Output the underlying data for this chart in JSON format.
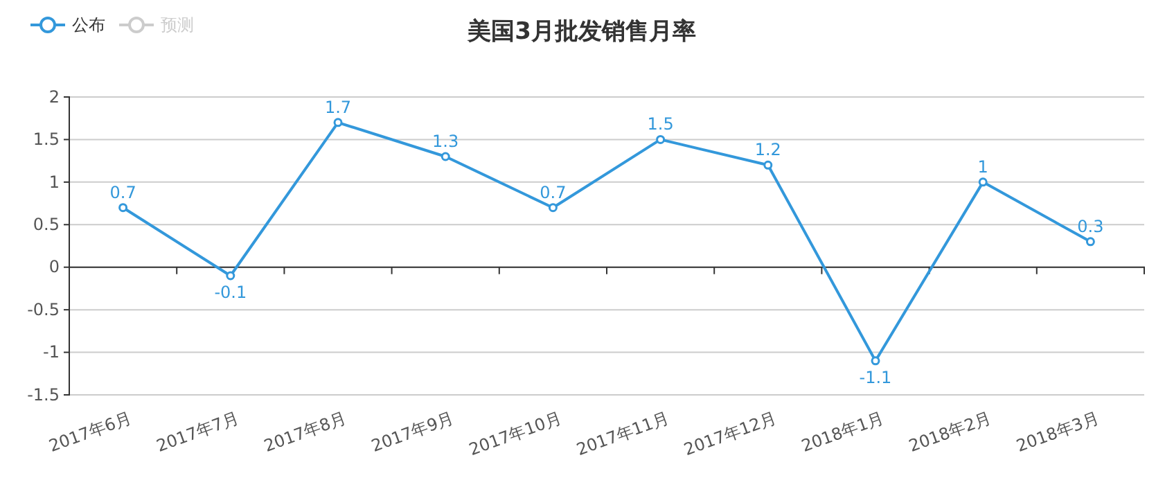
{
  "chart_data": {
    "type": "line",
    "title": "美国3月批发销售月率",
    "categories": [
      "2017年6月",
      "2017年7月",
      "2017年8月",
      "2017年9月",
      "2017年10月",
      "2017年11月",
      "2017年12月",
      "2018年1月",
      "2018年2月",
      "2018年3月"
    ],
    "series": [
      {
        "name": "公布",
        "color": "#3398db",
        "values": [
          0.7,
          -0.1,
          1.7,
          1.3,
          0.7,
          1.5,
          1.2,
          -1.1,
          1,
          0.3
        ]
      },
      {
        "name": "预测",
        "color": "#cccccc",
        "values": [
          null,
          null,
          null,
          null,
          null,
          null,
          null,
          null,
          null,
          null
        ]
      }
    ],
    "ylim": [
      -1.5,
      2
    ],
    "yticks": [
      -1.5,
      -1,
      -0.5,
      0,
      0.5,
      1,
      1.5,
      2
    ],
    "grid": "y",
    "legend": "top left",
    "marker": "circle",
    "line_style": "solid",
    "data_labels": true
  }
}
